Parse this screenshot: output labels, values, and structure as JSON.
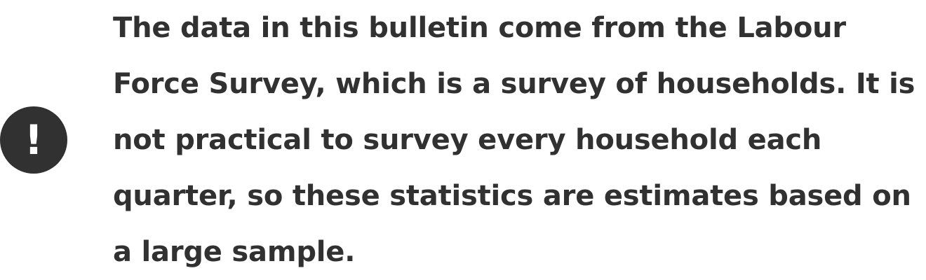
{
  "callout": {
    "icon": "exclamation-icon",
    "icon_glyph": "!",
    "text": "The data in this bulletin come from the Labour Force Survey, which is a survey of households. It is not practical to survey every household each quarter, so these statistics are estimates based on a large sample."
  },
  "colors": {
    "icon_background": "#323132",
    "text": "#323132",
    "page_background": "#ffffff"
  }
}
